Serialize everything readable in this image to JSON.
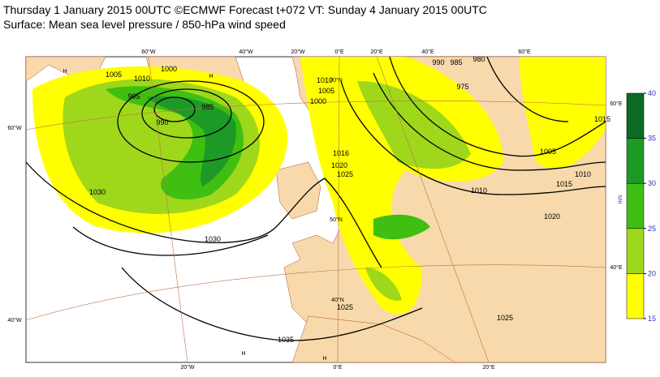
{
  "header": {
    "line1": "Thursday 1 January 2015 00UTC ©ECMWF Forecast t+072 VT: Sunday 4 January 2015 00UTC",
    "line2": "Surface: Mean sea level pressure / 850-hPa wind speed"
  },
  "map": {
    "lon_top": [
      "60°W",
      "40°W",
      "20°W",
      "0°E",
      "20°E",
      "40°E",
      "60°E"
    ],
    "lon_bottom": [
      "20°W",
      "0°E",
      "20°E"
    ],
    "lat_left": [
      "60°W",
      "40°W"
    ],
    "lat_right": [
      "60°E",
      "40°E"
    ],
    "lat_inner": [
      "70°N",
      "50°N",
      "40°N"
    ],
    "isobars": [
      "1005",
      "1010",
      "1000",
      "995",
      "990",
      "985",
      "1030",
      "1035",
      "1030",
      "1025",
      "1020",
      "1016",
      "1025",
      "1010",
      "1005",
      "1000",
      "990",
      "985",
      "980",
      "975",
      "1010",
      "1015",
      "1005",
      "1020",
      "1025",
      "1015",
      "1010"
    ],
    "highs": [
      "H",
      "H",
      "H",
      "H"
    ]
  },
  "colorbar": {
    "unit": "m/s",
    "ticks": [
      15,
      20,
      25,
      30,
      35,
      40
    ],
    "colors": [
      "#ffff00",
      "#9fd81a",
      "#3fbf12",
      "#1d9a26",
      "#0b6b22"
    ]
  }
}
